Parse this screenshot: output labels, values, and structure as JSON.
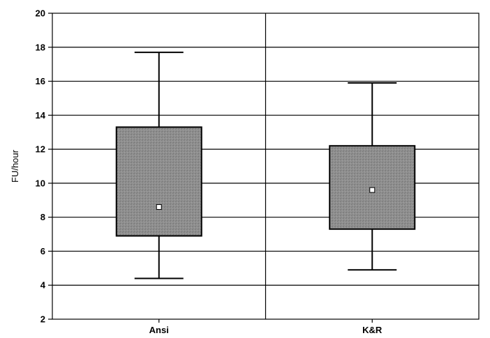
{
  "chart_data": {
    "type": "boxplot",
    "ylabel": "FU/hour",
    "ylim": [
      2,
      20
    ],
    "yticks": [
      2,
      4,
      6,
      8,
      10,
      12,
      14,
      16,
      18,
      20
    ],
    "grid": "horizontal",
    "categories": [
      "Ansi",
      "K&R"
    ],
    "boxes": [
      {
        "category": "Ansi",
        "whisker_low": 4.4,
        "q1": 6.9,
        "mean": 8.6,
        "q3": 13.3,
        "whisker_high": 17.7
      },
      {
        "category": "K&R",
        "whisker_low": 4.9,
        "q1": 7.3,
        "mean": 9.6,
        "q3": 12.2,
        "whisker_high": 15.9
      }
    ],
    "colors": {
      "box_fill": "#8f8f8f",
      "box_stroke": "#000000",
      "mean_marker": "#ffffff",
      "grid": "#000000"
    }
  }
}
